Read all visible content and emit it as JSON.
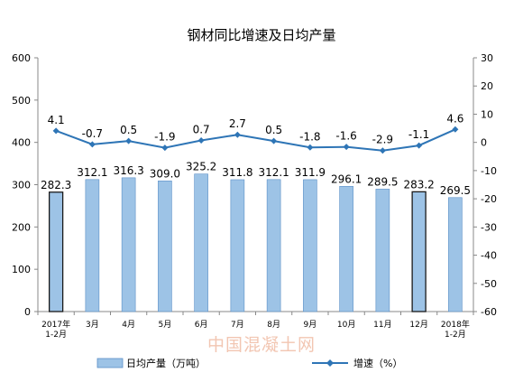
{
  "chart_data": {
    "type": "bar+line",
    "title": "钢材同比增速及日均产量",
    "categories": [
      [
        "2017年",
        "1-2月"
      ],
      [
        "3月"
      ],
      [
        "4月"
      ],
      [
        "5月"
      ],
      [
        "6月"
      ],
      [
        "7月"
      ],
      [
        "8月"
      ],
      [
        "9月"
      ],
      [
        "10月"
      ],
      [
        "11月"
      ],
      [
        "12月"
      ],
      [
        "2018年",
        "1-2月"
      ]
    ],
    "series": [
      {
        "name": "日均产量（万吨）",
        "type": "bar",
        "axis": "left",
        "values": [
          282.3,
          312.1,
          316.3,
          309.0,
          325.2,
          311.8,
          312.1,
          311.9,
          296.1,
          289.5,
          283.2,
          269.5
        ],
        "labels": [
          "282.3",
          "312.1",
          "316.3",
          "309.0",
          "325.2",
          "311.8",
          "312.1",
          "311.9",
          "296.1",
          "289.5",
          "283.2",
          "269.5"
        ],
        "color": "#9dc3e6"
      },
      {
        "name": "增速（%）",
        "type": "line",
        "axis": "right",
        "values": [
          4.1,
          -0.7,
          0.5,
          -1.9,
          0.7,
          2.7,
          0.5,
          -1.8,
          -1.6,
          -2.9,
          -1.1,
          4.6
        ],
        "labels": [
          "4.1",
          "-0.7",
          "0.5",
          "-1.9",
          "0.7",
          "2.7",
          "0.5",
          "-1.8",
          "-1.6",
          "-2.9",
          "-1.1",
          "4.6"
        ],
        "color": "#2e75b6"
      }
    ],
    "y_left": {
      "min": 0,
      "max": 600,
      "ticks": [
        0,
        100,
        200,
        300,
        400,
        500,
        600
      ]
    },
    "y_right": {
      "min": -60,
      "max": 30,
      "ticks": [
        -60,
        -50,
        -40,
        -30,
        -20,
        -10,
        0,
        10,
        20,
        30
      ]
    },
    "grid": false,
    "legend_position": "bottom"
  },
  "watermark": "中国混凝土网"
}
